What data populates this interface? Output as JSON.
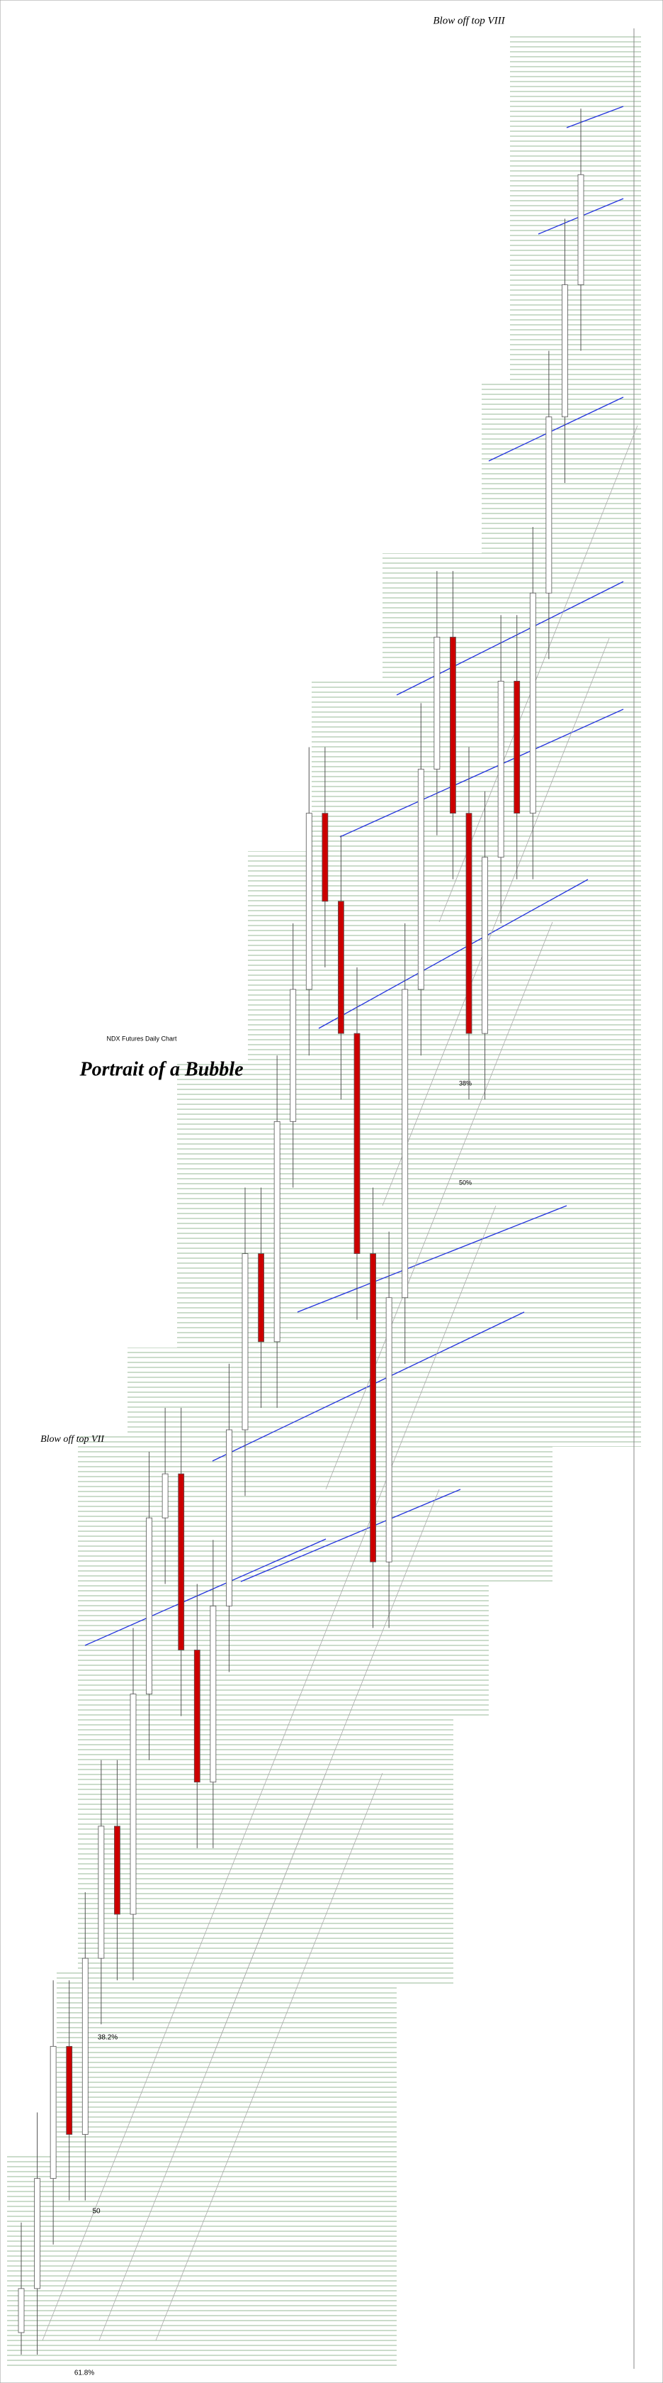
{
  "chart_data": {
    "type": "candlestick",
    "title": "Blow off top VIII",
    "subtitle": "NDX Futures Daily Chart",
    "caption": "Portrait of a Bubble",
    "annotations": [
      {
        "text": "Blow off top VII"
      },
      {
        "text": "38.2%"
      },
      {
        "text": "50"
      },
      {
        "text": "61.8%"
      },
      {
        "text": "38%"
      },
      {
        "text": "50%"
      }
    ],
    "ylim": [
      0,
      105
    ],
    "open": [
      1,
      3,
      8,
      14,
      10,
      18,
      24,
      20,
      30,
      38,
      40,
      32,
      26,
      34,
      42,
      50,
      46,
      56,
      62,
      70,
      66,
      60,
      50,
      36,
      48,
      62,
      72,
      78,
      70,
      60,
      68,
      76,
      70,
      80,
      88,
      94
    ],
    "high": [
      6,
      11,
      17,
      17,
      21,
      27,
      27,
      33,
      41,
      43,
      43,
      35,
      37,
      45,
      53,
      53,
      59,
      65,
      73,
      73,
      69,
      63,
      53,
      51,
      65,
      75,
      81,
      81,
      73,
      71,
      79,
      79,
      83,
      91,
      97,
      102
    ],
    "low": [
      0,
      0,
      5,
      7,
      7,
      15,
      17,
      17,
      27,
      35,
      29,
      23,
      23,
      31,
      39,
      43,
      43,
      53,
      59,
      63,
      57,
      47,
      33,
      33,
      45,
      59,
      69,
      67,
      57,
      57,
      65,
      67,
      67,
      77,
      85,
      91
    ],
    "close": [
      3,
      8,
      14,
      10,
      18,
      24,
      20,
      30,
      38,
      40,
      32,
      26,
      34,
      42,
      50,
      46,
      56,
      62,
      70,
      66,
      60,
      50,
      36,
      48,
      62,
      72,
      78,
      70,
      60,
      68,
      76,
      70,
      80,
      88,
      94,
      99
    ],
    "up_color": "#ffffff",
    "down_color": "#cc0000"
  }
}
